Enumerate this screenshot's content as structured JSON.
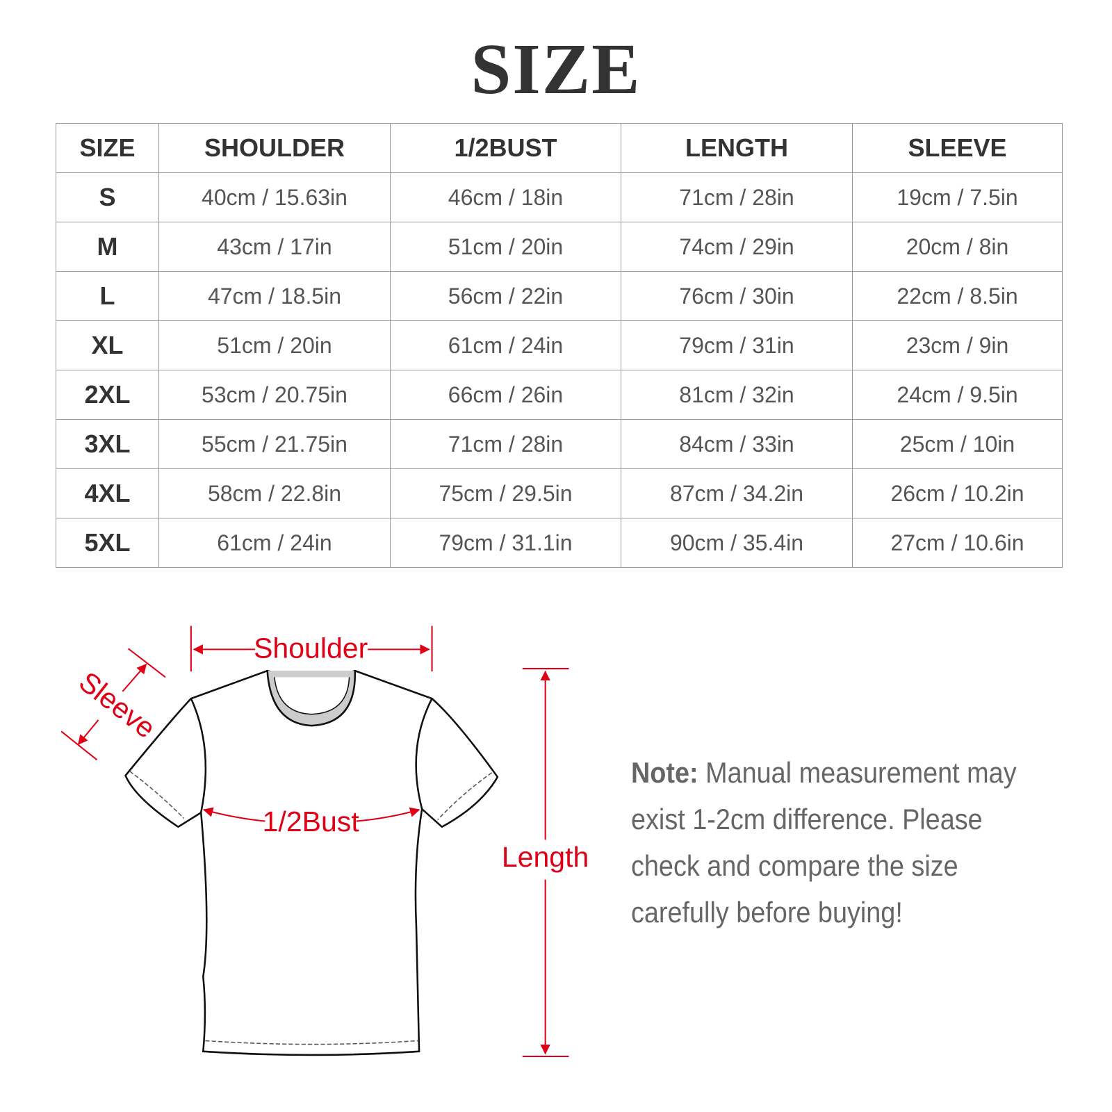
{
  "title": "SIZE",
  "table": {
    "headers": [
      "SIZE",
      "SHOULDER",
      "1/2BUST",
      "LENGTH",
      "SLEEVE"
    ],
    "rows": [
      [
        "S",
        "40cm / 15.63in",
        "46cm / 18in",
        "71cm / 28in",
        "19cm / 7.5in"
      ],
      [
        "M",
        "43cm / 17in",
        "51cm / 20in",
        "74cm / 29in",
        "20cm / 8in"
      ],
      [
        "L",
        "47cm / 18.5in",
        "56cm / 22in",
        "76cm / 30in",
        "22cm / 8.5in"
      ],
      [
        "XL",
        "51cm / 20in",
        "61cm / 24in",
        "79cm / 31in",
        "23cm / 9in"
      ],
      [
        "2XL",
        "53cm / 20.75in",
        "66cm / 26in",
        "81cm / 32in",
        "24cm / 9.5in"
      ],
      [
        "3XL",
        "55cm / 21.75in",
        "71cm / 28in",
        "84cm / 33in",
        "25cm / 10in"
      ],
      [
        "4XL",
        "58cm / 22.8in",
        "75cm / 29.5in",
        "87cm / 34.2in",
        "26cm / 10.2in"
      ],
      [
        "5XL",
        "61cm / 24in",
        "79cm / 31.1in",
        "90cm / 35.4in",
        "27cm / 10.6in"
      ]
    ]
  },
  "diagram": {
    "shoulder": "Shoulder",
    "sleeve": "Sleeve",
    "bust": "1/2Bust",
    "length": "Length",
    "accent_color": "#e00016"
  },
  "note": {
    "label": "Note:",
    "text": " Manual measurement may exist 1-2cm difference. Please check and compare the size carefully before buying!"
  }
}
